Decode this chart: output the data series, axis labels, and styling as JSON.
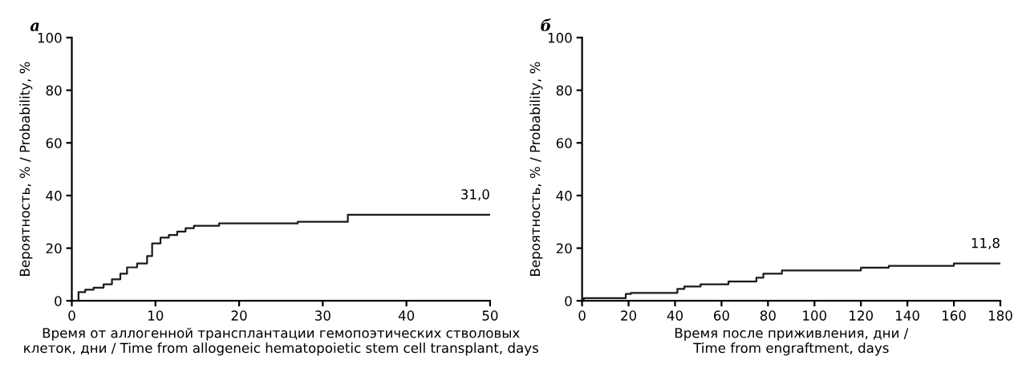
{
  "chart_data": [
    {
      "type": "step",
      "title": "а",
      "xlabel": "Время от аллогенной трансплантации гемопоэтических стволовых\nклеток, дни / Time from allogeneic hematopoietic stem cell transplant, days",
      "ylabel": "Вероятность, % / Probability, %",
      "series": [
        {
          "color": "#1a1a1a",
          "x": [
            0,
            0.8,
            1.6,
            2.6,
            3.8,
            4.8,
            5.8,
            6.6,
            7.8,
            9,
            9.6,
            10.6,
            11.6,
            12.6,
            13.6,
            14.6,
            17.6,
            27,
            33,
            50
          ],
          "values": [
            0,
            3.3,
            4.2,
            5,
            6.3,
            8.2,
            10.3,
            12.7,
            14.2,
            17,
            21.8,
            24,
            25,
            26.3,
            27.6,
            28.5,
            29.4,
            30,
            32.7,
            32.7
          ]
        }
      ],
      "annotations": [
        "31,0"
      ],
      "xlim": [
        0,
        50
      ],
      "ylim": [
        0,
        100
      ],
      "xticks": [
        0,
        10,
        20,
        30,
        40,
        50
      ],
      "yticks": [
        0,
        20,
        40,
        60,
        80,
        100
      ],
      "grid": false,
      "legend": false
    },
    {
      "type": "step",
      "title": "б",
      "xlabel": "Время после приживления, дни /\nTime from engraftment, days",
      "ylabel": "Вероятность, % / Probability, %",
      "series": [
        {
          "color": "#1a1a1a",
          "x": [
            0,
            0.7,
            17.6,
            18.8,
            21,
            41,
            44,
            51,
            63,
            75,
            78,
            86,
            120,
            132,
            160,
            180
          ],
          "values": [
            0,
            1,
            1,
            2.6,
            3,
            4.5,
            5.4,
            6.3,
            7.3,
            8.8,
            10.3,
            11.5,
            12.6,
            13.3,
            14.2,
            14.2
          ]
        }
      ],
      "annotations": [
        "11,8"
      ],
      "xlim": [
        0,
        180
      ],
      "ylim": [
        0,
        100
      ],
      "xticks": [
        0,
        20,
        40,
        60,
        80,
        100,
        120,
        140,
        160,
        180
      ],
      "yticks": [
        0,
        20,
        40,
        60,
        80,
        100
      ],
      "grid": false,
      "legend": false
    }
  ]
}
